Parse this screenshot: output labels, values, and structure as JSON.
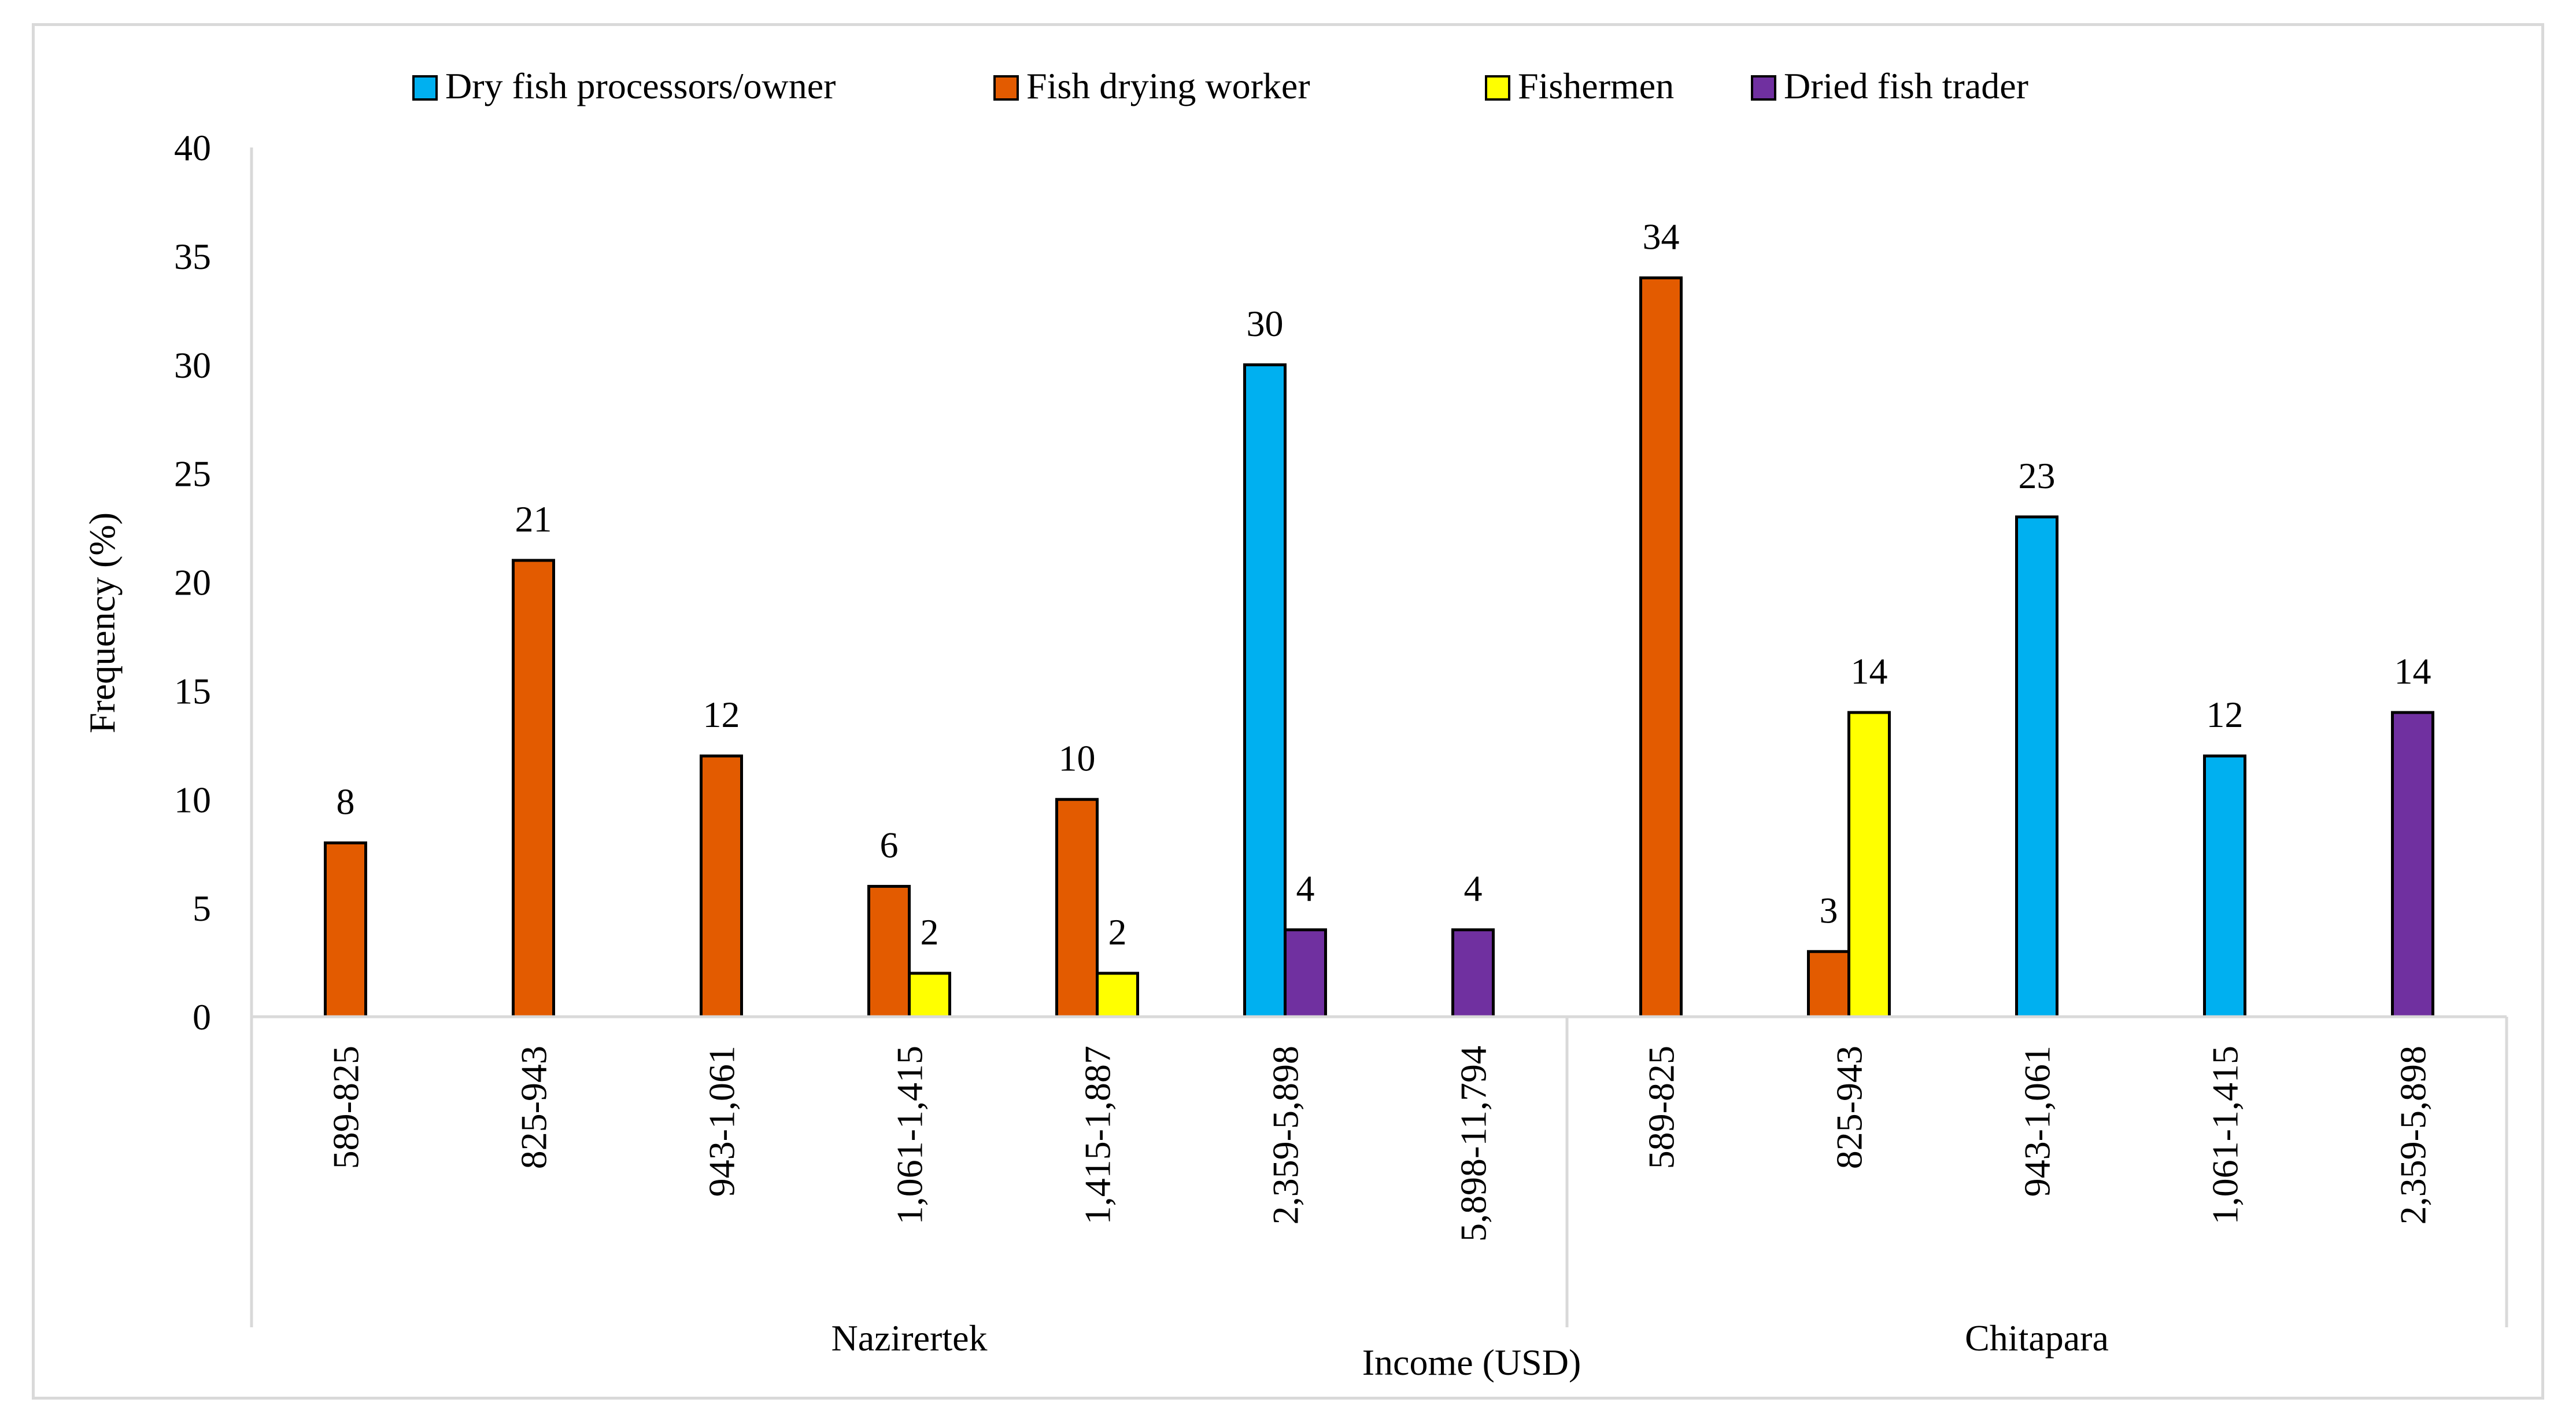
{
  "chart_data": {
    "type": "bar",
    "title": "",
    "xlabel": "Income (USD)",
    "ylabel": "Frequency (%)",
    "ylim": [
      0,
      40
    ],
    "yticks": [
      0,
      5,
      10,
      15,
      20,
      25,
      30,
      35,
      40
    ],
    "grid": false,
    "legend_position": "top",
    "groups": [
      {
        "name": "Nazirertek",
        "categories": [
          "589-825",
          "825-943",
          "943-1,061",
          "1,061-1,415",
          "1,415-1,887",
          "2,359-5,898",
          "5,898-11,794"
        ]
      },
      {
        "name": "Chitapara",
        "categories": [
          "589-825",
          "825-943",
          "943-1,061",
          "1,061-1,415",
          "2,359-5,898"
        ]
      }
    ],
    "series": [
      {
        "name": "Dry fish processors/owner",
        "color": "#00b0f0",
        "values": [
          null,
          null,
          null,
          null,
          null,
          30,
          null,
          null,
          null,
          23,
          12,
          null
        ]
      },
      {
        "name": "Fish drying worker",
        "color": "#e35b00",
        "values": [
          8,
          21,
          12,
          6,
          10,
          null,
          null,
          34,
          3,
          null,
          null,
          null
        ]
      },
      {
        "name": "Fishermen",
        "color": "#ffff00",
        "values": [
          null,
          null,
          null,
          2,
          2,
          null,
          null,
          null,
          14,
          null,
          null,
          null
        ]
      },
      {
        "name": "Dried fish trader",
        "color": "#7030a0",
        "values": [
          null,
          null,
          null,
          null,
          null,
          4,
          4,
          null,
          null,
          null,
          null,
          14
        ]
      }
    ]
  }
}
